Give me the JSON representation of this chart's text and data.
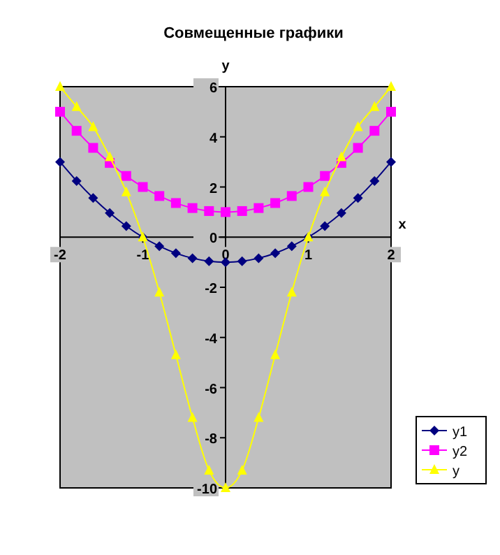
{
  "chart_data": {
    "type": "line",
    "title": "Совмещенные графики",
    "xlabel": "x",
    "ylabel": "y",
    "x": [
      -2,
      -1.8,
      -1.6,
      -1.4,
      -1.2,
      -1,
      -0.8,
      -0.6,
      -0.4,
      -0.2,
      0,
      0.2,
      0.4,
      0.6,
      0.8,
      1,
      1.2,
      1.4,
      1.6,
      1.8,
      2
    ],
    "xlim": [
      -2,
      2
    ],
    "xticks": [
      -2,
      -1,
      0,
      1,
      2
    ],
    "ylim": [
      -10,
      6
    ],
    "yticks": [
      -10,
      -8,
      -6,
      -4,
      -2,
      0,
      2,
      4,
      6
    ],
    "grid": false,
    "legend": "right",
    "series": [
      {
        "name": "y1",
        "color": "#000080",
        "marker": "diamond",
        "values": [
          3,
          2.24,
          1.56,
          0.96,
          0.44,
          0,
          -0.36,
          -0.64,
          -0.84,
          -0.96,
          -1,
          -0.96,
          -0.84,
          -0.64,
          -0.36,
          0,
          0.44,
          0.96,
          1.56,
          2.24,
          3
        ]
      },
      {
        "name": "y2",
        "color": "#ff00ff",
        "marker": "square",
        "values": [
          5,
          4.24,
          3.56,
          2.96,
          2.44,
          2,
          1.64,
          1.36,
          1.16,
          1.04,
          1,
          1.04,
          1.16,
          1.36,
          1.64,
          2,
          2.44,
          2.96,
          3.56,
          4.24,
          5
        ]
      },
      {
        "name": "y",
        "color": "#ffff00",
        "marker": "triangle",
        "values": [
          6,
          5.2,
          4.4,
          3.2,
          1.8,
          0,
          -2.2,
          -4.7,
          -7.2,
          -9.3,
          -10,
          -9.3,
          -7.2,
          -4.7,
          -2.2,
          0,
          1.8,
          3.2,
          4.4,
          5.2,
          6
        ]
      }
    ]
  }
}
